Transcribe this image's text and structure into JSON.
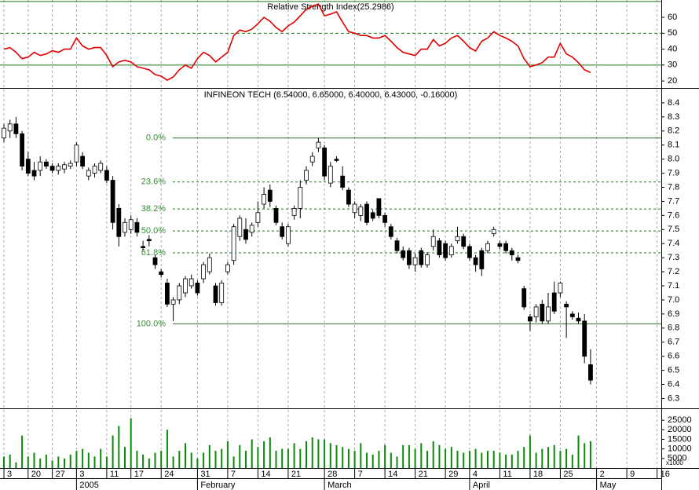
{
  "chart_data": [
    {
      "type": "line",
      "title": "Relative Strength Index(25.2986)",
      "color": "#e00000",
      "level_color": "#1a7a1a",
      "xlim": [
        -0.65,
        108.7
      ],
      "ylim": [
        15.6,
        70.9
      ],
      "yticks": [
        20,
        30,
        40,
        50,
        60
      ],
      "levels": [
        70,
        50,
        30
      ],
      "values": [
        40,
        41,
        38,
        34,
        35,
        38,
        36,
        37,
        39,
        38,
        40,
        40,
        47,
        42,
        40,
        41,
        41,
        36,
        29,
        32,
        33,
        32,
        29,
        28,
        27,
        24,
        23,
        20.5,
        22.5,
        27,
        30,
        28,
        34,
        38,
        36,
        32,
        35,
        38,
        48.6,
        52,
        51,
        52.6,
        56,
        60,
        57.5,
        53.6,
        51,
        54.6,
        57,
        61,
        65,
        67,
        68.4,
        61,
        62,
        63.5,
        57,
        51,
        50,
        48.6,
        48.6,
        47,
        47,
        48.6,
        45,
        41,
        38,
        37,
        36,
        40,
        40,
        46,
        42,
        43.7,
        47,
        48.6,
        45,
        41,
        38.8,
        45,
        47,
        51,
        48.6,
        47,
        45,
        42,
        34,
        29,
        30,
        31.5,
        35,
        35,
        43.7,
        37,
        35,
        31.5,
        27,
        25.3
      ]
    },
    {
      "type": "candlestick",
      "title": "INFINEON TECH (6.54000, 6.65000, 6.40000, 6.43000, -0.16000)",
      "xlim": [
        -0.65,
        108.7
      ],
      "ylim": [
        6.23,
        8.5
      ],
      "yticks": [
        6.3,
        6.4,
        6.5,
        6.6,
        6.7,
        6.8,
        6.9,
        {
          "value": 7,
          "label": "7.0"
        },
        7.1,
        7.2,
        7.3,
        7.4,
        7.5,
        7.6,
        7.7,
        7.8,
        7.9,
        {
          "value": 8,
          "label": "8.0"
        },
        8.1,
        8.2,
        8.3,
        8.4
      ],
      "fib_color": "#2e6b2e",
      "fibonacci": [
        {
          "value": 8.15,
          "label": "0.0%"
        },
        {
          "value": 7.838,
          "label": "23.6%"
        },
        {
          "value": 7.646,
          "label": "38.2%"
        },
        {
          "value": 7.49,
          "label": "50.0%"
        },
        {
          "value": 7.334,
          "label": "61.8%"
        },
        {
          "value": 6.83,
          "label": "100.0%"
        }
      ],
      "candles": [
        [
          8.15,
          8.25,
          8.12,
          8.22
        ],
        [
          8.2,
          8.28,
          8.15,
          8.25
        ],
        [
          8.25,
          8.3,
          8.15,
          8.18
        ],
        [
          8.18,
          8.2,
          7.92,
          7.95
        ],
        [
          8.0,
          8.05,
          7.88,
          7.9
        ],
        [
          7.92,
          7.98,
          7.85,
          7.88
        ],
        [
          7.92,
          8.02,
          7.88,
          7.98
        ],
        [
          7.98,
          8.0,
          7.93,
          7.95
        ],
        [
          7.95,
          7.97,
          7.9,
          7.92
        ],
        [
          7.92,
          7.97,
          7.89,
          7.95
        ],
        [
          7.93,
          7.98,
          7.9,
          7.96
        ],
        [
          7.95,
          7.99,
          7.93,
          7.97
        ],
        [
          7.98,
          8.12,
          7.95,
          8.1
        ],
        [
          8.02,
          8.05,
          7.93,
          7.95
        ],
        [
          7.88,
          7.94,
          7.85,
          7.92
        ],
        [
          7.9,
          7.97,
          7.87,
          7.95
        ],
        [
          7.92,
          7.99,
          7.9,
          7.97
        ],
        [
          7.92,
          7.95,
          7.83,
          7.85
        ],
        [
          7.85,
          7.88,
          7.5,
          7.55
        ],
        [
          7.65,
          7.68,
          7.38,
          7.45
        ],
        [
          7.48,
          7.58,
          7.45,
          7.55
        ],
        [
          7.5,
          7.6,
          7.47,
          7.57
        ],
        [
          7.55,
          7.58,
          7.45,
          7.48
        ],
        [
          7.38,
          7.42,
          7.35,
          7.37
        ],
        [
          7.43,
          7.46,
          7.38,
          7.42
        ],
        [
          7.3,
          7.32,
          7.22,
          7.25
        ],
        [
          7.2,
          7.22,
          7.16,
          7.18
        ],
        [
          7.12,
          7.15,
          6.95,
          6.97
        ],
        [
          6.97,
          7.02,
          6.85,
          7.0
        ],
        [
          7.0,
          7.12,
          6.97,
          7.1
        ],
        [
          7.05,
          7.17,
          7.02,
          7.15
        ],
        [
          7.1,
          7.18,
          7.08,
          7.15
        ],
        [
          7.12,
          7.14,
          7.03,
          7.05
        ],
        [
          7.15,
          7.27,
          7.12,
          7.25
        ],
        [
          7.2,
          7.33,
          7.18,
          7.3
        ],
        [
          7.1,
          7.12,
          6.96,
          6.98
        ],
        [
          6.98,
          7.14,
          6.96,
          7.12
        ],
        [
          7.2,
          7.27,
          7.18,
          7.25
        ],
        [
          7.28,
          7.54,
          7.25,
          7.52
        ],
        [
          7.45,
          7.6,
          7.42,
          7.58
        ],
        [
          7.5,
          7.58,
          7.4,
          7.43
        ],
        [
          7.48,
          7.55,
          7.45,
          7.53
        ],
        [
          7.55,
          7.7,
          7.52,
          7.62
        ],
        [
          7.68,
          7.8,
          7.65,
          7.75
        ],
        [
          7.78,
          7.82,
          7.66,
          7.7
        ],
        [
          7.65,
          7.67,
          7.53,
          7.55
        ],
        [
          7.52,
          7.55,
          7.43,
          7.45
        ],
        [
          7.4,
          7.54,
          7.38,
          7.52
        ],
        [
          7.6,
          7.67,
          7.57,
          7.65
        ],
        [
          7.65,
          7.85,
          7.58,
          7.8
        ],
        [
          7.85,
          7.95,
          7.82,
          7.92
        ],
        [
          7.98,
          8.05,
          7.95,
          8.02
        ],
        [
          8.08,
          8.15,
          8.05,
          8.12
        ],
        [
          8.08,
          8.1,
          7.85,
          7.88
        ],
        [
          7.83,
          7.98,
          7.8,
          7.95
        ],
        [
          8.0,
          8.02,
          7.98,
          7.99
        ],
        [
          7.88,
          7.95,
          7.78,
          7.8
        ],
        [
          7.78,
          7.8,
          7.66,
          7.68
        ],
        [
          7.62,
          7.7,
          7.58,
          7.68
        ],
        [
          7.6,
          7.68,
          7.56,
          7.66
        ],
        [
          7.68,
          7.7,
          7.53,
          7.55
        ],
        [
          7.62,
          7.64,
          7.56,
          7.58
        ],
        [
          7.72,
          7.72,
          7.58,
          7.6
        ],
        [
          7.6,
          7.62,
          7.52,
          7.55
        ],
        [
          7.52,
          7.54,
          7.43,
          7.45
        ],
        [
          7.42,
          7.44,
          7.33,
          7.35
        ],
        [
          7.35,
          7.38,
          7.28,
          7.3
        ],
        [
          7.35,
          7.37,
          7.22,
          7.25
        ],
        [
          7.25,
          7.33,
          7.2,
          7.3
        ],
        [
          7.35,
          7.37,
          7.23,
          7.25
        ],
        [
          7.25,
          7.34,
          7.23,
          7.32
        ],
        [
          7.38,
          7.5,
          7.35,
          7.45
        ],
        [
          7.42,
          7.44,
          7.3,
          7.32
        ],
        [
          7.4,
          7.42,
          7.28,
          7.3
        ],
        [
          7.32,
          7.4,
          7.3,
          7.38
        ],
        [
          7.42,
          7.52,
          7.4,
          7.45
        ],
        [
          7.45,
          7.47,
          7.36,
          7.38
        ],
        [
          7.38,
          7.4,
          7.28,
          7.3
        ],
        [
          7.3,
          7.32,
          7.2,
          7.25
        ],
        [
          7.35,
          7.37,
          7.17,
          7.22
        ],
        [
          7.35,
          7.42,
          7.33,
          7.4
        ],
        [
          7.47,
          7.52,
          7.45,
          7.5
        ],
        [
          7.4,
          7.42,
          7.36,
          7.38
        ],
        [
          7.4,
          7.42,
          7.33,
          7.35
        ],
        [
          7.35,
          7.37,
          7.28,
          7.32
        ],
        [
          7.3,
          7.32,
          7.26,
          7.28
        ],
        [
          7.08,
          7.1,
          6.93,
          6.95
        ],
        [
          6.88,
          6.9,
          6.78,
          6.85
        ],
        [
          6.88,
          6.97,
          6.84,
          6.95
        ],
        [
          6.97,
          7.0,
          6.83,
          6.85
        ],
        [
          6.85,
          7.05,
          6.83,
          6.95
        ],
        [
          7.05,
          7.13,
          6.9,
          6.92
        ],
        [
          7.05,
          7.13,
          7.02,
          7.12
        ],
        [
          6.97,
          6.99,
          6.73,
          6.95
        ],
        [
          6.9,
          6.92,
          6.86,
          6.88
        ],
        [
          6.87,
          6.91,
          6.83,
          6.85
        ],
        [
          6.85,
          6.9,
          6.55,
          6.6
        ],
        [
          6.54,
          6.65,
          6.4,
          6.43
        ]
      ]
    },
    {
      "type": "bar",
      "color": "#0a8a0a",
      "xlim": [
        -0.65,
        108.7
      ],
      "ylim": [
        0,
        30800
      ],
      "yticks": [
        5000,
        10000,
        15000,
        20000,
        25000
      ],
      "unit_label": "x1000",
      "values": [
        6000,
        7000,
        3000,
        17000,
        6000,
        8000,
        5000,
        7000,
        4000,
        6000,
        5000,
        7000,
        9000,
        10000,
        8000,
        6000,
        10000,
        6000,
        17000,
        22000,
        11000,
        26000,
        9000,
        7000,
        5000,
        8000,
        9000,
        20000,
        6000,
        9000,
        13000,
        8000,
        5000,
        8000,
        12000,
        9000,
        10000,
        14000,
        6000,
        12000,
        9000,
        15000,
        11000,
        14000,
        16000,
        9000,
        10000,
        10000,
        13000,
        10000,
        14000,
        16000,
        15000,
        15000,
        13000,
        12000,
        11000,
        10000,
        9000,
        13000,
        8000,
        7000,
        9000,
        12000,
        8000,
        6000,
        12000,
        12000,
        10000,
        13000,
        9000,
        14000,
        12000,
        10000,
        11000,
        9000,
        8000,
        9000,
        10000,
        8000,
        9000,
        9000,
        8000,
        7000,
        7000,
        9000,
        11000,
        17000,
        8000,
        10000,
        11000,
        12000,
        9000,
        10000,
        7000,
        17000,
        13000,
        14000
      ],
      "xticks": [
        {
          "value": 0,
          "label": "3"
        },
        {
          "value": 4,
          "label": "20"
        },
        {
          "value": 8,
          "label": "27"
        },
        {
          "value": 12,
          "label": "3"
        },
        {
          "value": 17,
          "label": "11"
        },
        {
          "value": 21,
          "label": "17"
        },
        {
          "value": 26,
          "label": "24"
        },
        {
          "value": 32,
          "label": "31"
        },
        {
          "value": 37,
          "label": "7"
        },
        {
          "value": 42,
          "label": "14"
        },
        {
          "value": 47,
          "label": "21"
        },
        {
          "value": 53,
          "label": "28"
        },
        {
          "value": 58,
          "label": "7"
        },
        {
          "value": 63,
          "label": "14"
        },
        {
          "value": 68,
          "label": "21"
        },
        {
          "value": 73,
          "label": "29"
        },
        {
          "value": 77,
          "label": "4"
        },
        {
          "value": 82,
          "label": "11"
        },
        {
          "value": 87,
          "label": "18"
        },
        {
          "value": 92,
          "label": "25"
        },
        {
          "value": 98,
          "label": "2"
        },
        {
          "value": 103,
          "label": "9"
        },
        {
          "value": 108,
          "label": "16"
        }
      ],
      "months": [
        {
          "value": 12,
          "label": "2005"
        },
        {
          "value": 32,
          "label": "February"
        },
        {
          "value": 53,
          "label": "March"
        },
        {
          "value": 77,
          "label": "April"
        },
        {
          "value": 98,
          "label": "May"
        }
      ]
    }
  ]
}
